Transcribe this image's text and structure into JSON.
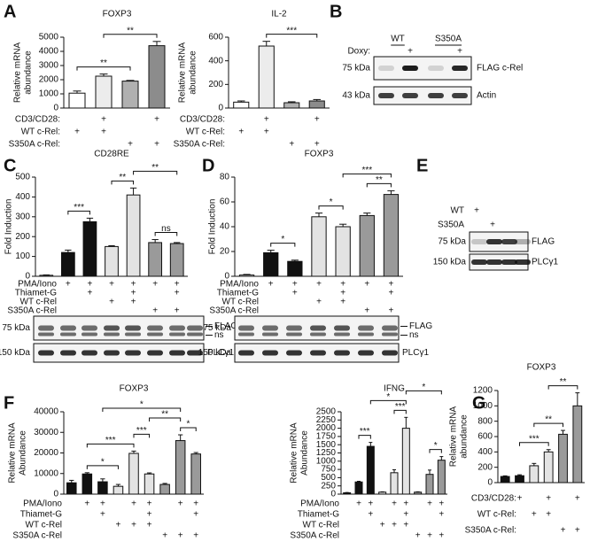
{
  "panels": [
    "A",
    "B",
    "C",
    "D",
    "E",
    "F",
    "G"
  ],
  "chart_data": [
    {
      "type": "bar",
      "title": "FOXP3",
      "y_label": [
        "Relative mRNA",
        "abundance"
      ],
      "values": [
        1050,
        2250,
        1900,
        4400
      ],
      "errors": [
        150,
        150,
        50,
        300
      ],
      "colors": [
        "#ffffff",
        "#ececec",
        "#b0b0b0",
        "#8c8c8c"
      ],
      "ylim": [
        0,
        5000
      ],
      "yticks": [
        0,
        1000,
        2000,
        3000,
        4000,
        5000
      ],
      "significance": [
        {
          "label": "**",
          "bars": [
            0,
            2
          ]
        },
        {
          "label": "**",
          "bars": [
            1,
            3
          ]
        }
      ],
      "conditions": [
        {
          "label": "CD3/CD28:",
          "signs": [
            null,
            "+",
            null,
            "+"
          ]
        },
        {
          "label": "WT c-Rel:",
          "signs": [
            "+",
            "+",
            null,
            null
          ]
        },
        {
          "label": "S350A c-Rel:",
          "signs": [
            null,
            null,
            "+",
            "+"
          ]
        }
      ]
    },
    {
      "type": "bar",
      "title": "IL-2",
      "y_label": [
        "Relative mRNA",
        "abundance"
      ],
      "values": [
        50,
        525,
        45,
        60
      ],
      "errors": [
        10,
        40,
        8,
        12
      ],
      "colors": [
        "#ffffff",
        "#ececec",
        "#b0b0b0",
        "#8c8c8c"
      ],
      "ylim": [
        0,
        600
      ],
      "yticks": [
        0,
        200,
        400,
        600
      ],
      "significance": [
        {
          "label": "***",
          "bars": [
            1,
            3
          ]
        }
      ],
      "conditions": [
        {
          "label": "CD3/CD28:",
          "signs": [
            null,
            "+",
            null,
            "+"
          ]
        },
        {
          "label": "WT c-Rel:",
          "signs": [
            "+",
            "+",
            null,
            null
          ]
        },
        {
          "label": "S350A c-Rel:",
          "signs": [
            null,
            null,
            "+",
            "+"
          ]
        }
      ]
    },
    {
      "type": "bar",
      "title": "CD28RE",
      "y_label": "Fold Induction",
      "values": [
        5,
        120,
        275,
        150,
        410,
        170,
        165
      ],
      "errors": [
        2,
        12,
        18,
        4,
        35,
        15,
        5
      ],
      "colors": [
        "#ffffff",
        "#111111",
        "#111111",
        "#e3e3e3",
        "#e3e3e3",
        "#9a9a9a",
        "#9a9a9a"
      ],
      "ylim": [
        0,
        500
      ],
      "yticks": [
        0,
        100,
        200,
        300,
        400,
        500
      ],
      "significance": [
        {
          "label": "***",
          "bars": [
            1,
            2
          ]
        },
        {
          "label": "**",
          "bars": [
            3,
            4
          ]
        },
        {
          "label": "ns",
          "bars": [
            5,
            6
          ]
        },
        {
          "label": "**",
          "bars": [
            4,
            6
          ]
        }
      ],
      "conditions": [
        {
          "label": "PMA/Iono",
          "signs": [
            null,
            "+",
            "+",
            "+",
            "+",
            "+",
            "+"
          ]
        },
        {
          "label": "Thiamet-G",
          "signs": [
            null,
            null,
            "+",
            null,
            "+",
            null,
            "+"
          ]
        },
        {
          "label": "WT c-Rel",
          "signs": [
            null,
            null,
            null,
            "+",
            "+",
            null,
            null
          ]
        },
        {
          "label": "S350A c-Rel",
          "signs": [
            null,
            null,
            null,
            null,
            null,
            "+",
            "+"
          ]
        }
      ]
    },
    {
      "type": "bar",
      "title": "FOXP3",
      "y_label": "Fold Induction",
      "values": [
        1,
        19,
        12,
        48,
        40,
        49,
        66
      ],
      "errors": [
        0.5,
        2,
        1,
        3,
        2,
        2,
        3
      ],
      "colors": [
        "#ffffff",
        "#111111",
        "#111111",
        "#e3e3e3",
        "#e3e3e3",
        "#9a9a9a",
        "#9a9a9a"
      ],
      "ylim": [
        0,
        80
      ],
      "yticks": [
        0,
        20,
        40,
        60,
        80
      ],
      "significance": [
        {
          "label": "*",
          "bars": [
            1,
            2
          ]
        },
        {
          "label": "*",
          "bars": [
            3,
            4
          ]
        },
        {
          "label": "**",
          "bars": [
            5,
            6
          ]
        },
        {
          "label": "***",
          "bars": [
            4,
            6
          ]
        }
      ],
      "conditions": [
        {
          "label": "PMA/Iono",
          "signs": [
            null,
            "+",
            "+",
            "+",
            "+",
            "+",
            "+"
          ]
        },
        {
          "label": "Thiamet-G",
          "signs": [
            null,
            null,
            "+",
            null,
            "+",
            null,
            "+"
          ]
        },
        {
          "label": "WT c-Rel",
          "signs": [
            null,
            null,
            null,
            "+",
            "+",
            null,
            null
          ]
        },
        {
          "label": "S350A c-Rel",
          "signs": [
            null,
            null,
            null,
            null,
            null,
            "+",
            "+"
          ]
        }
      ]
    },
    {
      "type": "bar",
      "title": "FOXP3",
      "y_label": [
        "Relative mRNA",
        "Abundance"
      ],
      "values": [
        5500,
        9800,
        6000,
        3800,
        19800,
        9800,
        4700,
        26000,
        19500
      ],
      "errors": [
        1200,
        600,
        1400,
        900,
        1100,
        500,
        500,
        2800,
        700
      ],
      "colors": [
        "#111111",
        "#111111",
        "#111111",
        "#e3e3e3",
        "#e3e3e3",
        "#e3e3e3",
        "#9a9a9a",
        "#9a9a9a",
        "#9a9a9a"
      ],
      "ylim": [
        0,
        40000
      ],
      "yticks": [
        0,
        10000,
        20000,
        30000,
        40000
      ],
      "significance": [
        {
          "label": "*",
          "bars": [
            1,
            3
          ]
        },
        {
          "label": "***",
          "bars": [
            1,
            4
          ]
        },
        {
          "label": "***",
          "bars": [
            4,
            5
          ]
        },
        {
          "label": "*",
          "bars": [
            7,
            8
          ]
        },
        {
          "label": "**",
          "bars": [
            5,
            7
          ]
        },
        {
          "label": "*",
          "bars": [
            2,
            7
          ]
        }
      ],
      "conditions": [
        {
          "label": "PMA/Iono",
          "signs": [
            null,
            "+",
            "+",
            null,
            "+",
            "+",
            null,
            "+",
            "+"
          ]
        },
        {
          "label": "Thiamet-G",
          "signs": [
            null,
            null,
            "+",
            null,
            null,
            "+",
            null,
            null,
            "+"
          ]
        },
        {
          "label": "WT c-Rel",
          "signs": [
            null,
            null,
            null,
            "+",
            "+",
            "+",
            null,
            null,
            null
          ]
        },
        {
          "label": "S350A c-Rel",
          "signs": [
            null,
            null,
            null,
            null,
            null,
            null,
            "+",
            "+",
            "+"
          ]
        }
      ]
    },
    {
      "type": "bar",
      "title": "IFNG",
      "y_label": [
        "Relative mRNA",
        "Abundance"
      ],
      "values": [
        40,
        370,
        1450,
        60,
        650,
        2000,
        60,
        600,
        1030
      ],
      "errors": [
        10,
        20,
        120,
        10,
        90,
        330,
        10,
        130,
        110
      ],
      "colors": [
        "#111111",
        "#111111",
        "#111111",
        "#e3e3e3",
        "#e3e3e3",
        "#e3e3e3",
        "#9a9a9a",
        "#9a9a9a",
        "#9a9a9a"
      ],
      "ylim": [
        0,
        2500
      ],
      "yticks": [
        0,
        250,
        500,
        750,
        1000,
        1250,
        1500,
        1750,
        2000,
        2250,
        2500
      ],
      "significance": [
        {
          "label": "***",
          "bars": [
            1,
            2
          ]
        },
        {
          "label": "*",
          "bars": [
            7,
            8
          ]
        },
        {
          "label": "***",
          "bars": [
            4,
            5
          ]
        },
        {
          "label": "*",
          "bars": [
            2,
            5
          ]
        },
        {
          "label": "*",
          "bars": [
            5,
            8
          ]
        }
      ],
      "conditions": [
        {
          "label": "PMA/Iono",
          "signs": [
            null,
            "+",
            "+",
            null,
            "+",
            "+",
            null,
            "+",
            "+"
          ]
        },
        {
          "label": "Thiamet-G",
          "signs": [
            null,
            null,
            "+",
            null,
            null,
            "+",
            null,
            null,
            "+"
          ]
        },
        {
          "label": "WT c-Rel",
          "signs": [
            null,
            null,
            null,
            "+",
            "+",
            "+",
            null,
            null,
            null
          ]
        },
        {
          "label": "S350A c-Rel",
          "signs": [
            null,
            null,
            null,
            null,
            null,
            null,
            "+",
            "+",
            "+"
          ]
        }
      ]
    },
    {
      "type": "bar",
      "title": "FOXP3",
      "y_label": [
        "Relative mRNA",
        "abundance"
      ],
      "values": [
        80,
        90,
        220,
        400,
        630,
        1000
      ],
      "errors": [
        8,
        12,
        30,
        30,
        50,
        170
      ],
      "colors": [
        "#111111",
        "#111111",
        "#e3e3e3",
        "#e3e3e3",
        "#9a9a9a",
        "#9a9a9a"
      ],
      "ylim": [
        0,
        1200
      ],
      "yticks": [
        0,
        200,
        400,
        600,
        800,
        1000,
        1200
      ],
      "significance": [
        {
          "label": "***",
          "bars": [
            1,
            3
          ]
        },
        {
          "label": "**",
          "bars": [
            2,
            4
          ]
        },
        {
          "label": "**",
          "bars": [
            3,
            5
          ]
        }
      ],
      "conditions": [
        {
          "label": "CD3/CD28:",
          "signs": [
            null,
            "+",
            null,
            "+",
            null,
            "+"
          ]
        },
        {
          "label": "WT c-Rel:",
          "signs": [
            null,
            null,
            "+",
            "+",
            null,
            null
          ]
        },
        {
          "label": "S350A c-Rel:",
          "signs": [
            null,
            null,
            null,
            null,
            "+",
            "+"
          ]
        }
      ]
    }
  ],
  "blots": [
    {
      "header": {
        "columns": [
          "WT",
          "S350A"
        ],
        "row_label": "Doxy:",
        "signs": [
          "+",
          "+"
        ]
      },
      "rows": [
        {
          "size": "75 kDa",
          "label": "FLAG c-Rel"
        },
        {
          "size": "43 kDa",
          "label": "Actin"
        }
      ]
    },
    {
      "rows": [
        {
          "size": "75 kDa",
          "labels": [
            "FLAG",
            "ns"
          ]
        },
        {
          "size": "150 kDa",
          "label": "PLCγ1"
        }
      ]
    },
    {
      "rows": [
        {
          "size": "75 kDa",
          "labels": [
            "FLAG",
            "ns"
          ]
        },
        {
          "size": "150 kDa",
          "label": "PLCγ1"
        }
      ]
    },
    {
      "header": {
        "columns": [
          "WT",
          "S350A"
        ],
        "signs": [
          "+",
          "+"
        ]
      },
      "rows": [
        {
          "size": "75 kDa",
          "label": "FLAG"
        },
        {
          "size": "150 kDa",
          "label": "PLCγ1"
        }
      ]
    }
  ]
}
